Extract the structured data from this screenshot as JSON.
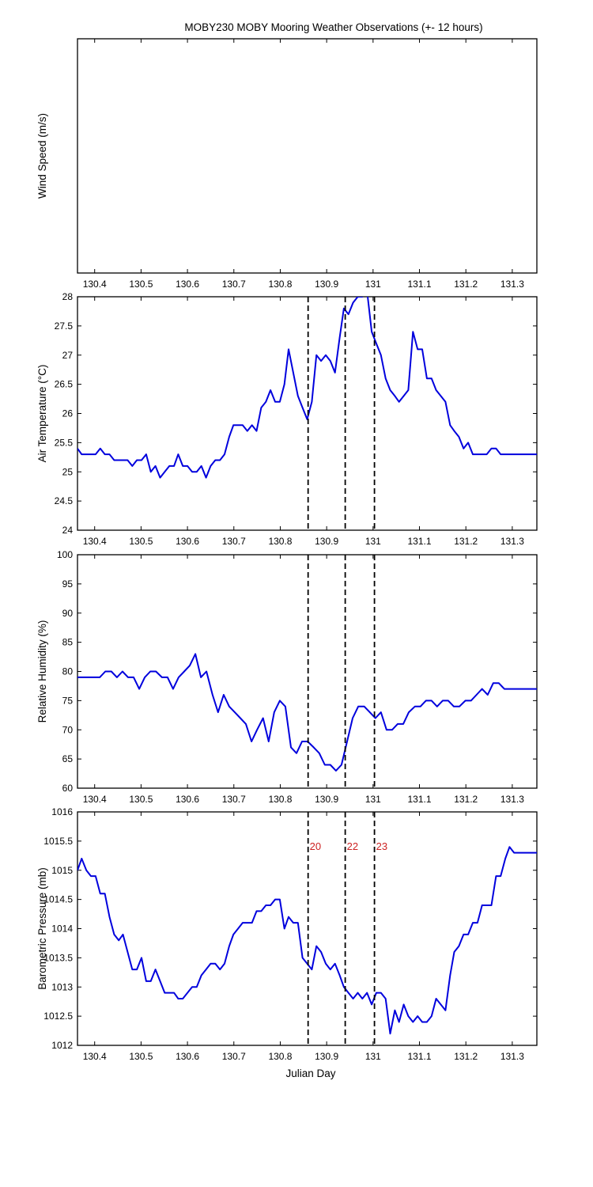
{
  "figure": {
    "title": "MOBY230 MOBY Mooring Weather Observations (+- 12 hours)",
    "xlabel": "Julian Day"
  },
  "chart_data": [
    {
      "type": "line",
      "ylabel": "Wind Speed (m/s)",
      "xlim": [
        130.363,
        131.353
      ],
      "ylim": null,
      "x_ticks": [
        "130.4",
        "130.5",
        "130.6",
        "130.7",
        "130.8",
        "130.9",
        "131",
        "131.1",
        "131.2",
        "131.3"
      ],
      "y_ticks": [],
      "series": [],
      "event_lines": [],
      "event_labels": []
    },
    {
      "type": "line",
      "ylabel": "Air Temperature (°C)",
      "xlim": [
        130.363,
        131.353
      ],
      "ylim": [
        24,
        28
      ],
      "x_ticks": [
        "130.4",
        "130.5",
        "130.6",
        "130.7",
        "130.8",
        "130.9",
        "131",
        "131.1",
        "131.2",
        "131.3"
      ],
      "y_ticks": [
        "24",
        "24.5",
        "25",
        "25.5",
        "26",
        "26.5",
        "27",
        "27.5",
        "28"
      ],
      "line_color": "#0000dd",
      "series": [
        {
          "x": [
            130.363,
            130.372,
            130.382,
            130.392,
            130.402,
            130.412,
            130.422,
            130.432,
            130.442,
            130.452,
            130.461,
            130.471,
            130.481,
            130.491,
            130.501,
            130.511,
            130.521,
            130.531,
            130.541,
            130.551,
            130.561,
            130.571,
            130.58,
            130.59,
            130.6,
            130.61,
            130.62,
            130.63,
            130.64,
            130.65,
            130.66,
            130.67,
            130.68,
            130.69,
            130.699,
            130.709,
            130.719,
            130.729,
            130.739,
            130.749,
            130.759,
            130.769,
            130.779,
            130.789,
            130.799,
            130.809,
            130.818,
            130.828,
            130.838,
            130.848,
            130.858,
            130.868,
            130.878,
            130.888,
            130.898,
            130.908,
            130.918,
            130.928,
            130.937,
            130.947,
            130.957,
            130.967,
            130.977,
            130.987,
            130.997,
            131.007,
            131.017,
            131.027,
            131.037,
            131.047,
            131.056,
            131.066,
            131.076,
            131.086,
            131.096,
            131.106,
            131.116,
            131.126,
            131.136,
            131.146,
            131.156,
            131.166,
            131.175,
            131.185,
            131.195,
            131.205,
            131.215,
            131.225,
            131.235,
            131.245,
            131.255,
            131.265,
            131.275,
            131.285,
            131.294,
            131.304,
            131.314,
            131.324,
            131.334,
            131.344,
            131.353
          ],
          "y": [
            25.4,
            25.3,
            25.3,
            25.3,
            25.3,
            25.4,
            25.3,
            25.3,
            25.2,
            25.2,
            25.2,
            25.2,
            25.1,
            25.2,
            25.2,
            25.3,
            25.0,
            25.1,
            24.9,
            25.0,
            25.1,
            25.1,
            25.3,
            25.1,
            25.1,
            25.0,
            25.0,
            25.1,
            24.9,
            25.1,
            25.2,
            25.2,
            25.3,
            25.6,
            25.8,
            25.8,
            25.8,
            25.7,
            25.8,
            25.7,
            26.1,
            26.2,
            26.4,
            26.2,
            26.2,
            26.5,
            27.1,
            26.7,
            26.3,
            26.1,
            25.9,
            26.2,
            27.0,
            26.9,
            27.0,
            26.9,
            26.7,
            27.3,
            27.8,
            27.7,
            27.9,
            28.0,
            28.0,
            28.1,
            27.4,
            27.2,
            27.0,
            26.6,
            26.4,
            26.3,
            26.2,
            26.3,
            26.4,
            27.4,
            27.1,
            27.1,
            26.6,
            26.6,
            26.4,
            26.3,
            26.2,
            25.8,
            25.7,
            25.6,
            25.4,
            25.5,
            25.3,
            25.3,
            25.3,
            25.3,
            25.4,
            25.4,
            25.3,
            25.3,
            25.3,
            25.3,
            25.3,
            25.3,
            25.3,
            25.3,
            25.3
          ]
        }
      ],
      "event_lines": [
        130.86,
        130.94,
        131.003
      ],
      "event_labels": []
    },
    {
      "type": "line",
      "ylabel": "Relative Humidity (%)",
      "xlim": [
        130.363,
        131.353
      ],
      "ylim": [
        60,
        100
      ],
      "x_ticks": [
        "130.4",
        "130.5",
        "130.6",
        "130.7",
        "130.8",
        "130.9",
        "131",
        "131.1",
        "131.2",
        "131.3"
      ],
      "y_ticks": [
        "60",
        "65",
        "70",
        "75",
        "80",
        "85",
        "90",
        "95",
        "100"
      ],
      "line_color": "#0000dd",
      "series": [
        {
          "x": [
            130.363,
            130.375,
            130.387,
            130.399,
            130.411,
            130.423,
            130.436,
            130.448,
            130.46,
            130.472,
            130.484,
            130.496,
            130.508,
            130.52,
            130.532,
            130.545,
            130.557,
            130.569,
            130.581,
            130.593,
            130.605,
            130.617,
            130.629,
            130.641,
            130.654,
            130.666,
            130.678,
            130.69,
            130.702,
            130.714,
            130.726,
            130.738,
            130.75,
            130.763,
            130.775,
            130.787,
            130.799,
            130.811,
            130.823,
            130.835,
            130.847,
            130.859,
            130.872,
            130.884,
            130.896,
            130.908,
            130.92,
            130.932,
            130.944,
            130.956,
            130.968,
            130.981,
            130.993,
            131.005,
            131.017,
            131.029,
            131.041,
            131.053,
            131.065,
            131.077,
            131.09,
            131.102,
            131.114,
            131.126,
            131.138,
            131.15,
            131.162,
            131.174,
            131.186,
            131.199,
            131.211,
            131.223,
            131.235,
            131.247,
            131.259,
            131.271,
            131.283,
            131.295,
            131.308,
            131.32,
            131.332,
            131.344,
            131.353
          ],
          "y": [
            79,
            79,
            79,
            79,
            79,
            80,
            80,
            79,
            80,
            79,
            79,
            77,
            79,
            80,
            80,
            79,
            79,
            77,
            79,
            80,
            81,
            83,
            79,
            80,
            76,
            73,
            76,
            74,
            73,
            72,
            71,
            68,
            70,
            72,
            68,
            73,
            75,
            74,
            67,
            66,
            68,
            68,
            67,
            66,
            64,
            64,
            63,
            64,
            68,
            72,
            74,
            74,
            73,
            72,
            73,
            70,
            70,
            71,
            71,
            73,
            74,
            74,
            75,
            75,
            74,
            75,
            75,
            74,
            74,
            75,
            75,
            76,
            77,
            76,
            78,
            78,
            77,
            77,
            77,
            77,
            77,
            77,
            77
          ]
        }
      ],
      "event_lines": [
        130.86,
        130.94,
        131.003
      ],
      "event_labels": []
    },
    {
      "type": "line",
      "ylabel": "Barometric Pressure (mb)",
      "xlim": [
        130.363,
        131.353
      ],
      "ylim": [
        1012,
        1016
      ],
      "x_ticks": [
        "130.4",
        "130.5",
        "130.6",
        "130.7",
        "130.8",
        "130.9",
        "131",
        "131.1",
        "131.2",
        "131.3"
      ],
      "y_ticks": [
        "1012",
        "1012.5",
        "1013",
        "1013.5",
        "1014",
        "1014.5",
        "1015",
        "1015.5",
        "1016"
      ],
      "line_color": "#0000dd",
      "series": [
        {
          "x": [
            130.363,
            130.372,
            130.382,
            130.392,
            130.402,
            130.412,
            130.422,
            130.432,
            130.442,
            130.452,
            130.461,
            130.471,
            130.481,
            130.491,
            130.501,
            130.511,
            130.521,
            130.531,
            130.541,
            130.551,
            130.561,
            130.571,
            130.58,
            130.59,
            130.6,
            130.61,
            130.62,
            130.63,
            130.64,
            130.65,
            130.66,
            130.67,
            130.68,
            130.69,
            130.699,
            130.709,
            130.719,
            130.729,
            130.739,
            130.749,
            130.759,
            130.769,
            130.779,
            130.789,
            130.799,
            130.809,
            130.818,
            130.828,
            130.838,
            130.848,
            130.858,
            130.868,
            130.878,
            130.888,
            130.898,
            130.908,
            130.918,
            130.928,
            130.937,
            130.947,
            130.957,
            130.967,
            130.977,
            130.987,
            130.997,
            131.007,
            131.017,
            131.027,
            131.037,
            131.047,
            131.056,
            131.066,
            131.076,
            131.086,
            131.096,
            131.106,
            131.116,
            131.126,
            131.136,
            131.146,
            131.156,
            131.166,
            131.175,
            131.185,
            131.195,
            131.205,
            131.215,
            131.225,
            131.235,
            131.245,
            131.255,
            131.265,
            131.275,
            131.285,
            131.294,
            131.304,
            131.314,
            131.324,
            131.334,
            131.344,
            131.353
          ],
          "y": [
            1015.0,
            1015.2,
            1015.0,
            1014.9,
            1014.9,
            1014.6,
            1014.6,
            1014.2,
            1013.9,
            1013.8,
            1013.9,
            1013.6,
            1013.3,
            1013.3,
            1013.5,
            1013.1,
            1013.1,
            1013.3,
            1013.1,
            1012.9,
            1012.9,
            1012.9,
            1012.8,
            1012.8,
            1012.9,
            1013.0,
            1013.0,
            1013.2,
            1013.3,
            1013.4,
            1013.4,
            1013.3,
            1013.4,
            1013.7,
            1013.9,
            1014.0,
            1014.1,
            1014.1,
            1014.1,
            1014.3,
            1014.3,
            1014.4,
            1014.4,
            1014.5,
            1014.5,
            1014.0,
            1014.2,
            1014.1,
            1014.1,
            1013.5,
            1013.4,
            1013.3,
            1013.7,
            1013.6,
            1013.4,
            1013.3,
            1013.4,
            1013.2,
            1013.0,
            1012.9,
            1012.8,
            1012.9,
            1012.8,
            1012.9,
            1012.7,
            1012.9,
            1012.9,
            1012.8,
            1012.2,
            1012.6,
            1012.4,
            1012.7,
            1012.5,
            1012.4,
            1012.5,
            1012.4,
            1012.4,
            1012.5,
            1012.8,
            1012.7,
            1012.6,
            1013.2,
            1013.6,
            1013.7,
            1013.9,
            1013.9,
            1014.1,
            1014.1,
            1014.4,
            1014.4,
            1014.4,
            1014.9,
            1014.9,
            1015.2,
            1015.4,
            1015.3,
            1015.3,
            1015.3,
            1015.3,
            1015.3,
            1015.3
          ]
        }
      ],
      "event_lines": [
        130.86,
        130.94,
        131.003
      ],
      "event_labels": [
        "20",
        "22",
        "23"
      ]
    }
  ]
}
